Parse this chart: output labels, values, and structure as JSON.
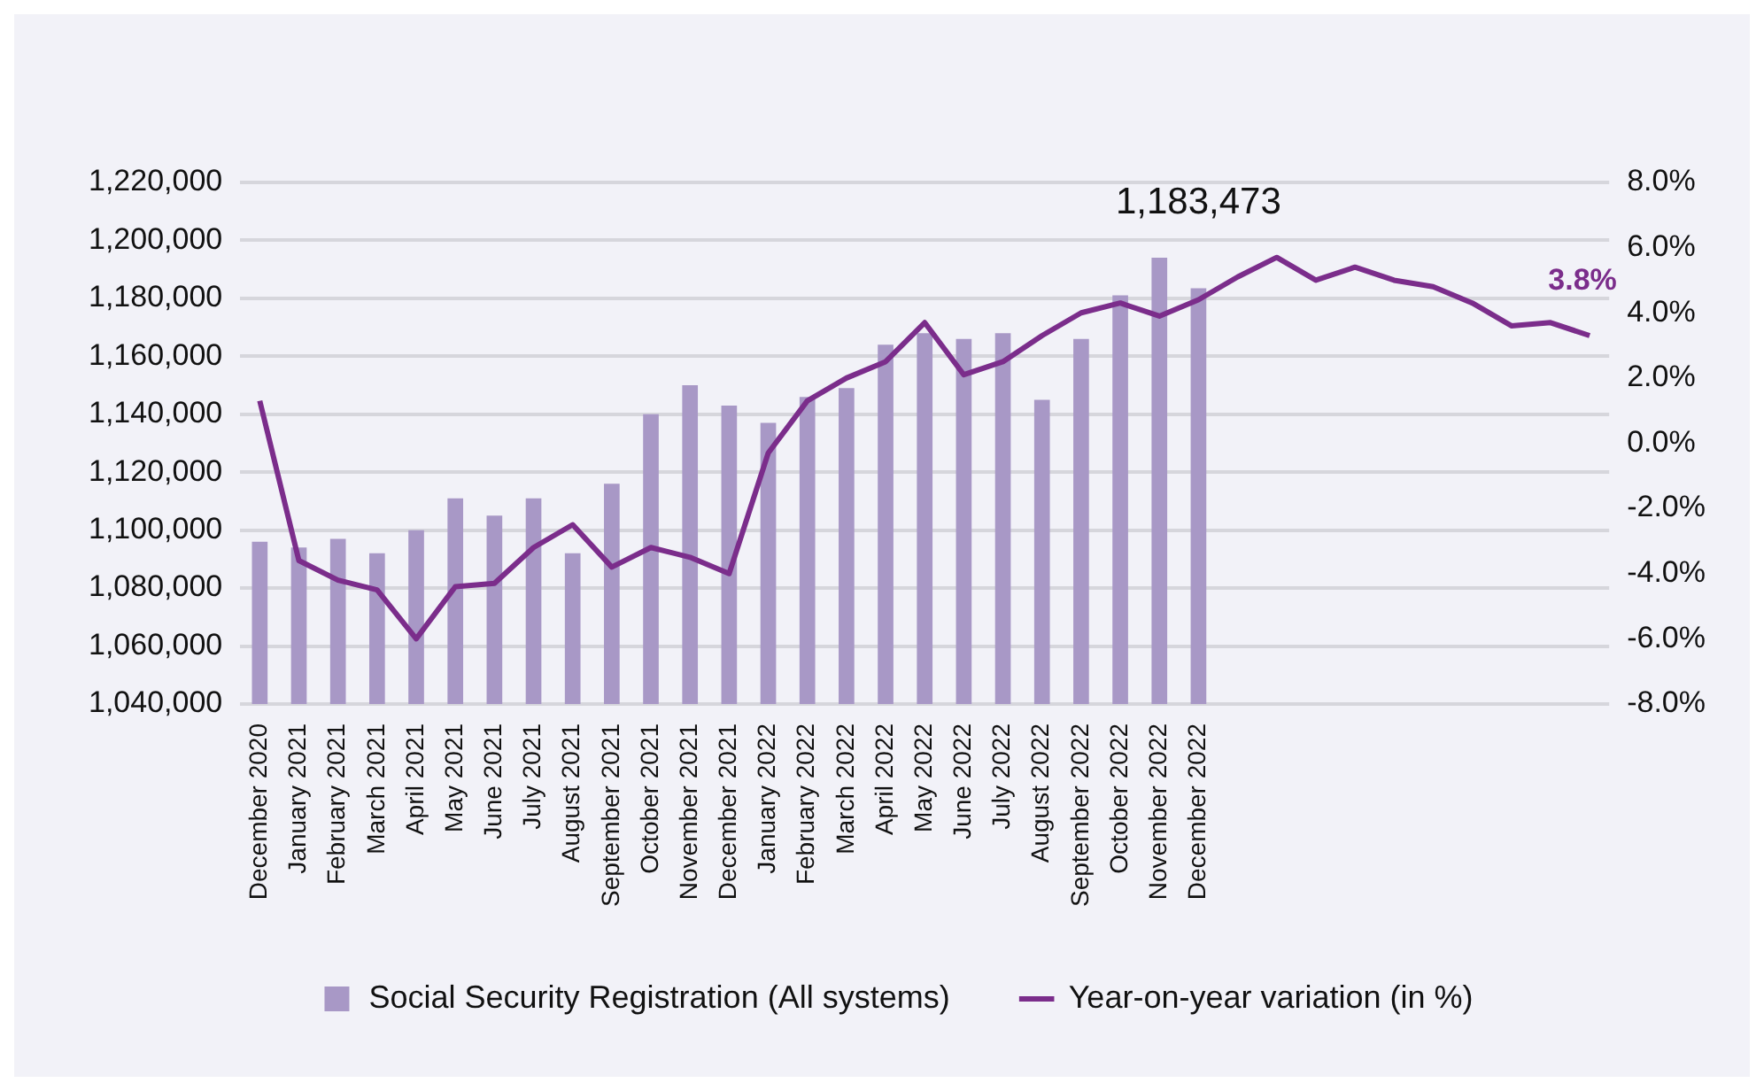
{
  "chart_data": {
    "type": "bar",
    "categories": [
      "December 2020",
      "January 2021",
      "February 2021",
      "March 2021",
      "April 2021",
      "May 2021",
      "June 2021",
      "July 2021",
      "August 2021",
      "September 2021",
      "October 2021",
      "November 2021",
      "December 2021",
      "January 2022",
      "February 2022",
      "March 2022",
      "April 2022",
      "May 2022",
      "June 2022",
      "July 2022",
      "August 2022",
      "September 2022",
      "October 2022",
      "November 2022",
      "December 2022",
      null,
      null,
      null,
      null,
      null,
      null,
      null,
      null,
      null,
      null
    ],
    "series": [
      {
        "name": "Social Security Registration (All systems)",
        "color": "#a898c6",
        "values": [
          1096000,
          1094000,
          1097000,
          1092000,
          1100000,
          1111000,
          1105000,
          1111000,
          1092000,
          1116000,
          1140000,
          1150000,
          1143000,
          1137000,
          1146000,
          1149000,
          1164000,
          1168000,
          1166000,
          1168000,
          1145000,
          1166000,
          1181000,
          1194000,
          1183473,
          null,
          null,
          null,
          null,
          null,
          null,
          null,
          null,
          null,
          null
        ],
        "value_labels": [
          null,
          null,
          null,
          null,
          null,
          null,
          null,
          null,
          null,
          null,
          null,
          null,
          null,
          null,
          null,
          null,
          null,
          null,
          null,
          null,
          null,
          null,
          null,
          null,
          "1,183,473",
          null,
          null,
          null,
          null,
          null,
          null,
          null,
          null,
          null,
          null
        ]
      },
      {
        "name": "Year-on-year variation (in %)",
        "type": "line",
        "axis": "y2",
        "color": "#7b2d8b",
        "values": [
          1.3,
          -3.6,
          -4.2,
          -4.5,
          -6.0,
          -4.4,
          -4.3,
          -3.2,
          -2.5,
          -3.8,
          -3.2,
          -3.5,
          -4.0,
          -0.3,
          1.3,
          2.0,
          2.5,
          3.7,
          2.1,
          2.5,
          3.3,
          4.0,
          4.3,
          3.9,
          4.4,
          5.1,
          5.7,
          5.0,
          5.4,
          5.0,
          4.8,
          4.3,
          3.6,
          3.7,
          3.3
        ]
      }
    ],
    "ylim": [
      1040000,
      1220000
    ],
    "yticks": [
      {
        "value": 1040000,
        "label": "1,040,000"
      },
      {
        "value": 1060000,
        "label": "1,060,000"
      },
      {
        "value": 1080000,
        "label": "1,080,000"
      },
      {
        "value": 1100000,
        "label": "1,100,000"
      },
      {
        "value": 1120000,
        "label": "1,120,000"
      },
      {
        "value": 1140000,
        "label": "1,140,000"
      },
      {
        "value": 1160000,
        "label": "1,160,000"
      },
      {
        "value": 1180000,
        "label": "1,180,000"
      },
      {
        "value": 1200000,
        "label": "1,200,000"
      },
      {
        "value": 1220000,
        "label": "1,220,000"
      }
    ],
    "y2lim": [
      -8,
      8
    ],
    "y2ticks": [
      {
        "value": -8,
        "label": "-8.0%"
      },
      {
        "value": -6,
        "label": "-6.0%"
      },
      {
        "value": -4,
        "label": "-4.0%"
      },
      {
        "value": -2,
        "label": "-2.0%"
      },
      {
        "value": 0,
        "label": "0.0%"
      },
      {
        "value": 2,
        "label": "2.0%"
      },
      {
        "value": 4,
        "label": "4.0%"
      },
      {
        "value": 6,
        "label": "6.0%"
      },
      {
        "value": 8,
        "label": "8.0%"
      }
    ],
    "annotations": [
      "3.8%"
    ],
    "grid": "y",
    "legend": "bottom",
    "marker": "none",
    "line_style": "solid"
  }
}
